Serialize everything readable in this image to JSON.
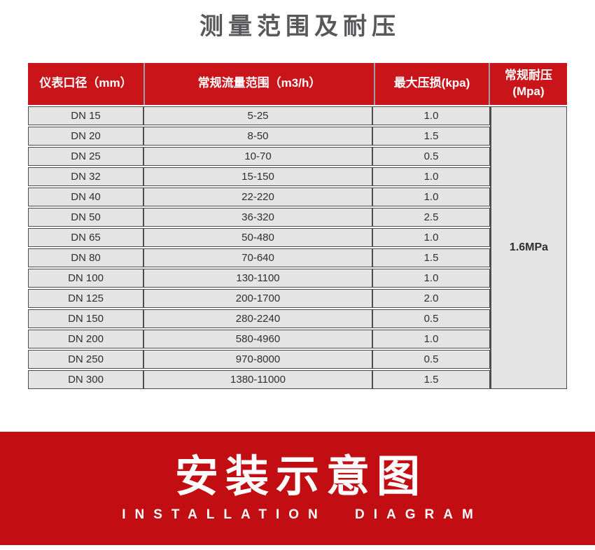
{
  "page_title": "测量范围及耐压",
  "table": {
    "headers": [
      "仪表口径（mm）",
      "常规流量范围（m3/h）",
      "最大压损(kpa)",
      "常规耐压\n(Mpa)"
    ],
    "rows": [
      {
        "diameter": "DN 15",
        "flow_range": "5-25",
        "max_pressure_loss": "1.0"
      },
      {
        "diameter": "DN 20",
        "flow_range": "8-50",
        "max_pressure_loss": "1.5"
      },
      {
        "diameter": "DN 25",
        "flow_range": "10-70",
        "max_pressure_loss": "0.5"
      },
      {
        "diameter": "DN 32",
        "flow_range": "15-150",
        "max_pressure_loss": "1.0"
      },
      {
        "diameter": "DN 40",
        "flow_range": "22-220",
        "max_pressure_loss": "1.0"
      },
      {
        "diameter": "DN 50",
        "flow_range": "36-320",
        "max_pressure_loss": "2.5"
      },
      {
        "diameter": "DN 65",
        "flow_range": "50-480",
        "max_pressure_loss": "1.0"
      },
      {
        "diameter": "DN 80",
        "flow_range": "70-640",
        "max_pressure_loss": "1.5"
      },
      {
        "diameter": "DN 100",
        "flow_range": "130-1100",
        "max_pressure_loss": "1.0"
      },
      {
        "diameter": "DN 125",
        "flow_range": "200-1700",
        "max_pressure_loss": "2.0"
      },
      {
        "diameter": "DN 150",
        "flow_range": "280-2240",
        "max_pressure_loss": "0.5"
      },
      {
        "diameter": "DN 200",
        "flow_range": "580-4960",
        "max_pressure_loss": "1.0"
      },
      {
        "diameter": "DN 250",
        "flow_range": "970-8000",
        "max_pressure_loss": "0.5"
      },
      {
        "diameter": "DN 300",
        "flow_range": "1380-11000",
        "max_pressure_loss": "1.5"
      }
    ],
    "pressure_rating": "1.6MPa"
  },
  "banner": {
    "title": "安装示意图",
    "subtitle": "INSTALLATION DIAGRAM"
  },
  "colors": {
    "header_red": "#c9141a",
    "banner_red": "#c20d13",
    "row_gray": "#e4e4e4",
    "border_dark": "#4c4c4c",
    "title_gray": "#58585b"
  }
}
